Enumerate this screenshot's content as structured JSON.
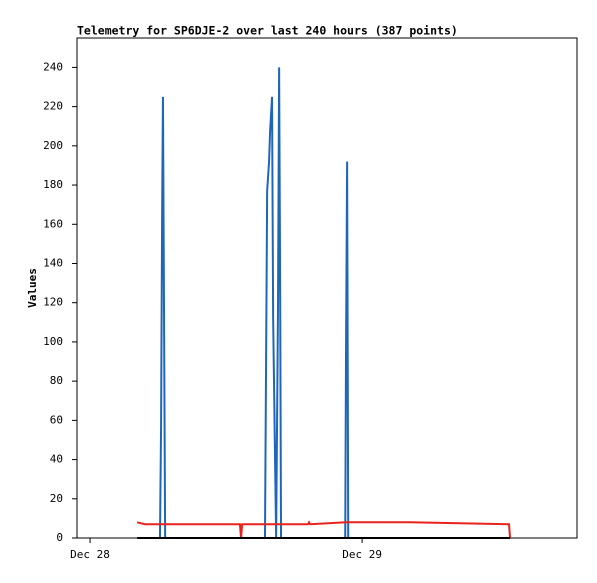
{
  "chart_data": {
    "type": "line",
    "title": "Telemetry for SP6DJE-2 over last 240 hours (387 points)",
    "ylabel": "Values",
    "xlim": [
      -0.048,
      1.79
    ],
    "ylim": [
      0,
      255
    ],
    "xticks": [
      {
        "value": 0,
        "label": "Dec 28"
      },
      {
        "value": 1,
        "label": "Dec 29"
      }
    ],
    "yticks": [
      0,
      20,
      40,
      60,
      80,
      100,
      120,
      140,
      160,
      180,
      200,
      220,
      240
    ],
    "series": [
      {
        "color": "#1f66b8",
        "x": [
          0.173,
          0.257,
          0.261,
          0.265,
          0.268,
          0.272,
          0.276,
          0.643,
          0.647,
          0.651,
          0.658,
          0.662,
          0.669,
          0.673,
          0.684,
          0.691,
          0.695,
          0.699,
          0.702,
          0.938,
          0.941,
          0.945,
          0.949,
          1.544
        ],
        "values": [
          0,
          0,
          56,
          168,
          225,
          112,
          0,
          0,
          88,
          177,
          192,
          208,
          225,
          112,
          0,
          120,
          240,
          120,
          0,
          0,
          97,
          192,
          0,
          0
        ]
      },
      {
        "color": "#e8221c",
        "x": [
          0.173,
          0.202,
          0.551,
          0.555,
          0.559,
          0.801,
          0.805,
          0.809,
          0.941,
          1.176,
          1.54,
          1.544
        ],
        "values": [
          8,
          7,
          7,
          0,
          7,
          7,
          8,
          7,
          8,
          8,
          7,
          0
        ]
      },
      {
        "color": "#000000",
        "x": [
          0.173,
          1.544
        ],
        "values": [
          0,
          0
        ]
      }
    ]
  }
}
